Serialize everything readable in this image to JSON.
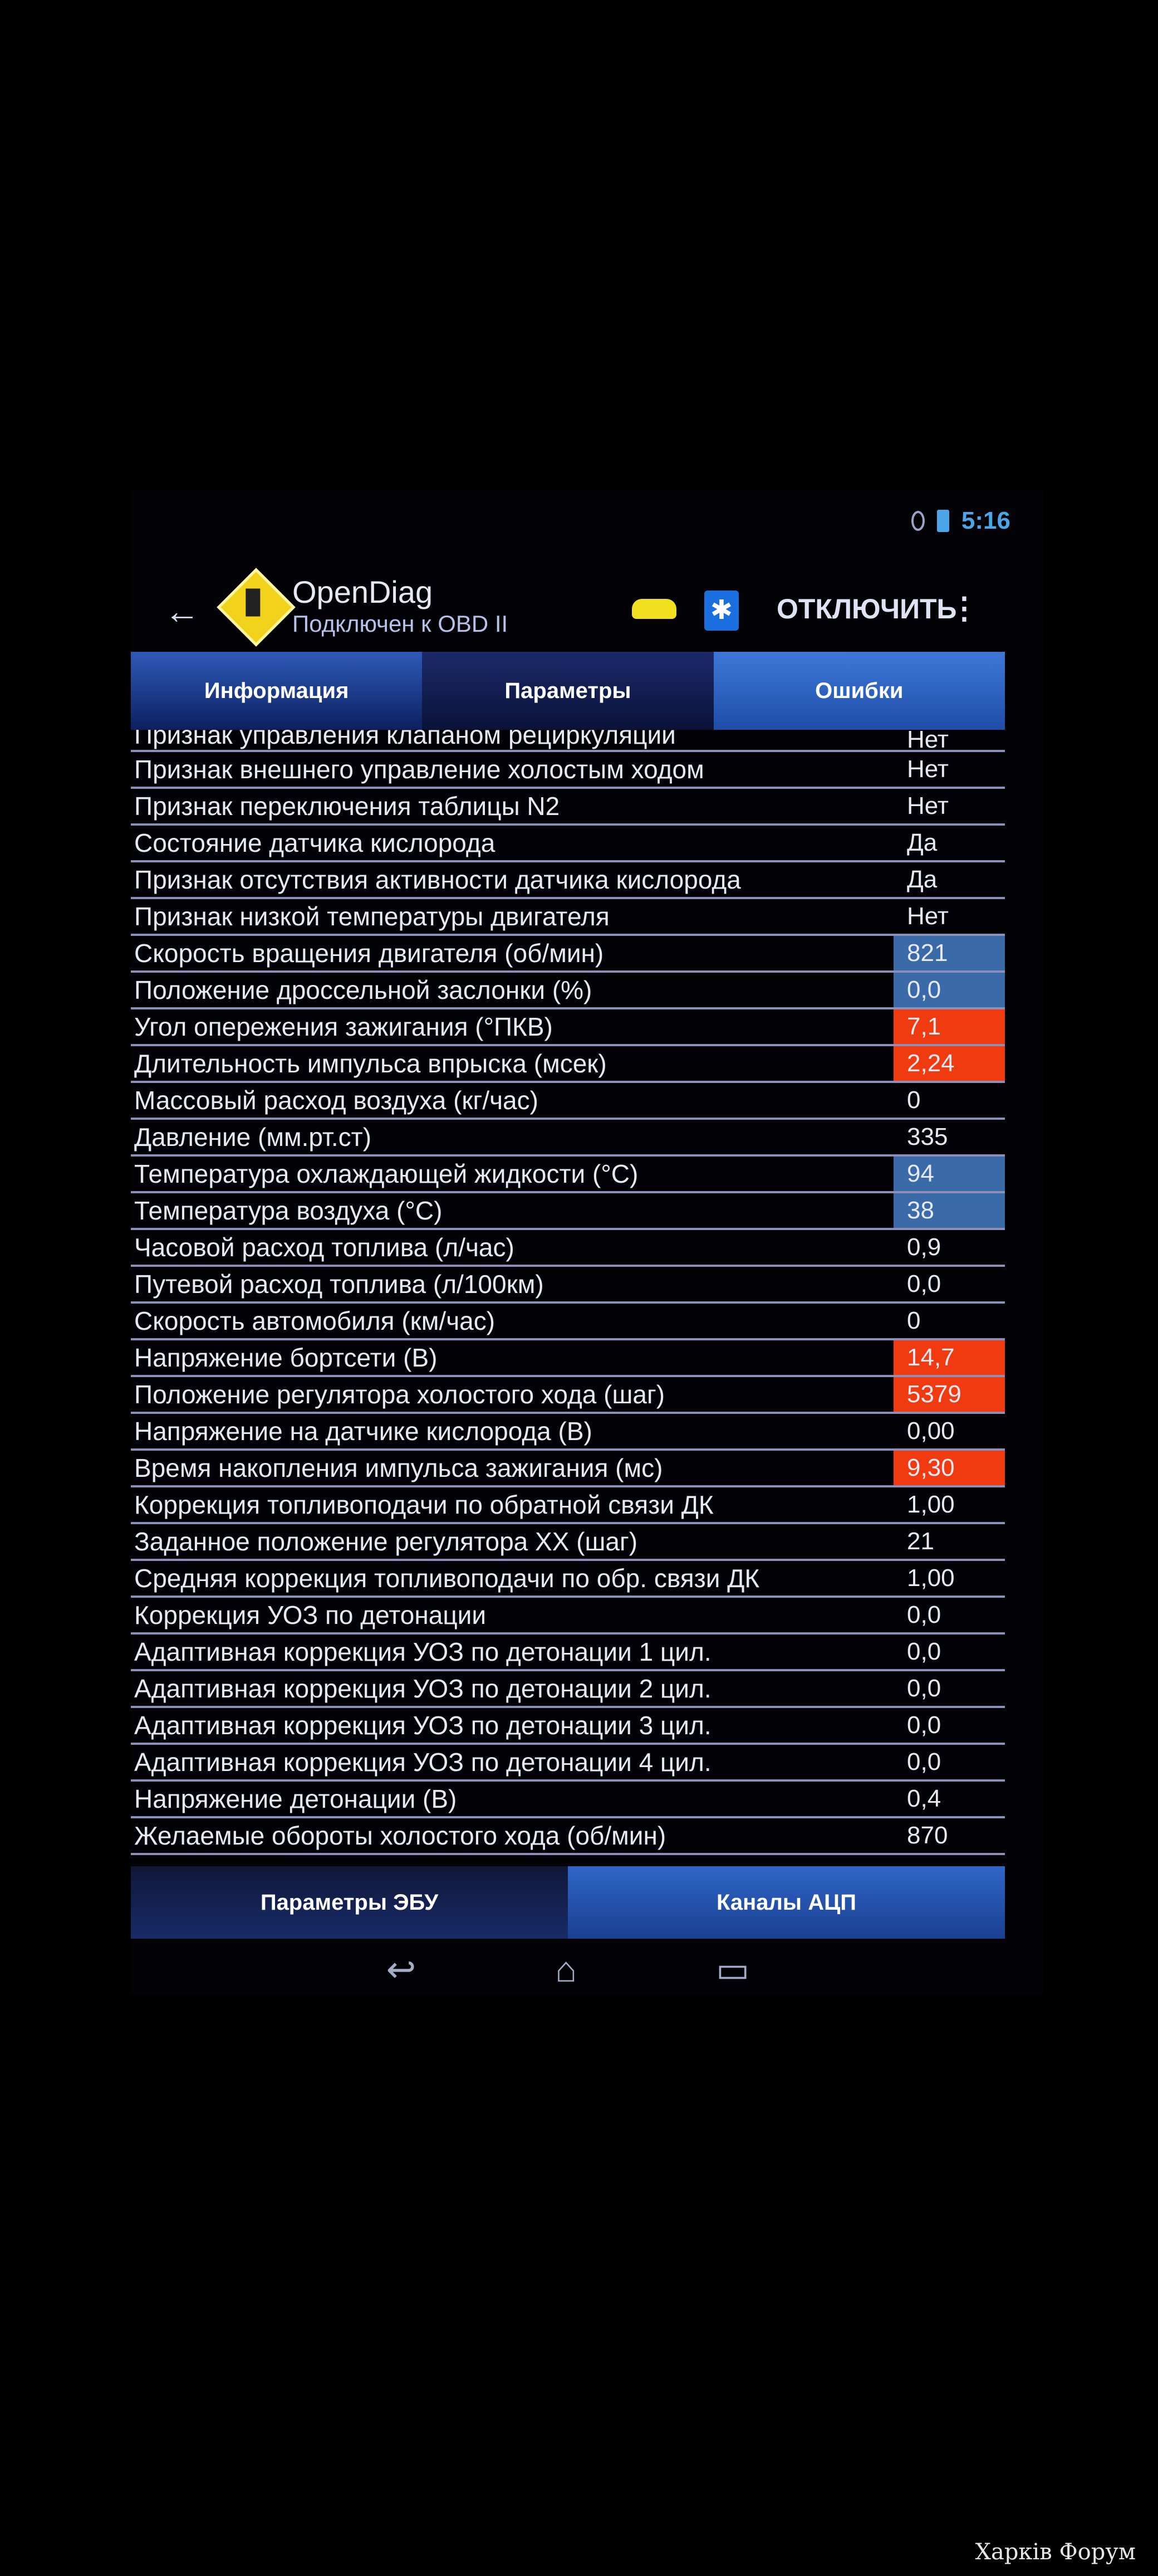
{
  "statusbar": {
    "time": "5:16"
  },
  "header": {
    "app_title": "OpenDiag",
    "subtitle": "Подключен к OBD II",
    "disconnect_label": "ОТКЛЮЧИТЬ",
    "menu_glyph": "⋮",
    "back_glyph": "←",
    "bluetooth_glyph": "✱"
  },
  "tabs": [
    {
      "label": "Информация"
    },
    {
      "label": "Параметры"
    },
    {
      "label": "Ошибки"
    }
  ],
  "rows": [
    {
      "label": "Признак управления клапаном рециркуляции",
      "value": "Нет",
      "highlight": "none"
    },
    {
      "label": "Признак внешнего управление холостым ходом",
      "value": "Нет",
      "highlight": "none"
    },
    {
      "label": "Признак переключения таблицы N2",
      "value": "Нет",
      "highlight": "none"
    },
    {
      "label": "Состояние датчика кислорода",
      "value": "Да",
      "highlight": "none"
    },
    {
      "label": "Признак отсутствия активности датчика кислорода",
      "value": "Да",
      "highlight": "none"
    },
    {
      "label": "Признак низкой температуры двигателя",
      "value": "Нет",
      "highlight": "none"
    },
    {
      "label": "Скорость вращения двигателя (об/мин)",
      "value": "821",
      "highlight": "blue"
    },
    {
      "label": "Положение дроссельной заслонки (%)",
      "value": "0,0",
      "highlight": "blue"
    },
    {
      "label": "Угол опережения зажигания (°ПКВ)",
      "value": "7,1",
      "highlight": "red"
    },
    {
      "label": "Длительность импульса впрыска (мсек)",
      "value": "2,24",
      "highlight": "red"
    },
    {
      "label": "Массовый расход воздуха (кг/час)",
      "value": "0",
      "highlight": "none"
    },
    {
      "label": "Давление (мм.рт.ст)",
      "value": "335",
      "highlight": "none"
    },
    {
      "label": "Температура охлаждающей жидкости (°C)",
      "value": "94",
      "highlight": "blue"
    },
    {
      "label": "Температура воздуха (°C)",
      "value": "38",
      "highlight": "blue"
    },
    {
      "label": "Часовой расход топлива (л/час)",
      "value": "0,9",
      "highlight": "none"
    },
    {
      "label": "Путевой расход топлива (л/100км)",
      "value": "0,0",
      "highlight": "none"
    },
    {
      "label": "Скорость автомобиля (км/час)",
      "value": "0",
      "highlight": "none"
    },
    {
      "label": "Напряжение бортсети (В)",
      "value": "14,7",
      "highlight": "red"
    },
    {
      "label": "Положение регулятора холостого хода (шаг)",
      "value": "5379",
      "highlight": "red"
    },
    {
      "label": "Напряжение на датчике кислорода (В)",
      "value": "0,00",
      "highlight": "none"
    },
    {
      "label": "Время накопления импульса зажигания (мс)",
      "value": "9,30",
      "highlight": "red"
    },
    {
      "label": "Коррекция топливоподачи по обратной связи ДК",
      "value": "1,00",
      "highlight": "none"
    },
    {
      "label": "Заданное положение регулятора ХХ (шаг)",
      "value": "21",
      "highlight": "none"
    },
    {
      "label": "Средняя коррекция топливоподачи по обр. связи ДК",
      "value": "1,00",
      "highlight": "none"
    },
    {
      "label": "Коррекция УОЗ по детонации",
      "value": "0,0",
      "highlight": "none"
    },
    {
      "label": "Адаптивная коррекция УОЗ по детонации 1 цил.",
      "value": "0,0",
      "highlight": "none"
    },
    {
      "label": "Адаптивная коррекция УОЗ по детонации 2 цил.",
      "value": "0,0",
      "highlight": "none"
    },
    {
      "label": "Адаптивная коррекция УОЗ по детонации 3 цил.",
      "value": "0,0",
      "highlight": "none"
    },
    {
      "label": "Адаптивная коррекция УОЗ по детонации 4 цил.",
      "value": "0,0",
      "highlight": "none"
    },
    {
      "label": "Напряжение детонации (В)",
      "value": "0,4",
      "highlight": "none"
    },
    {
      "label": "Желаемые обороты холостого хода (об/мин)",
      "value": "870",
      "highlight": "none"
    }
  ],
  "bottom_tabs": [
    {
      "label": "Параметры ЭБУ"
    },
    {
      "label": "Каналы АЦП"
    }
  ],
  "navbar": {
    "back": "↩",
    "home": "⌂",
    "recents": "▭"
  },
  "watermark": "Харків Форум",
  "colors": {
    "highlight_blue": "#3b6aa8",
    "highlight_red": "#f03a10",
    "accent": "#2e5ab8"
  }
}
